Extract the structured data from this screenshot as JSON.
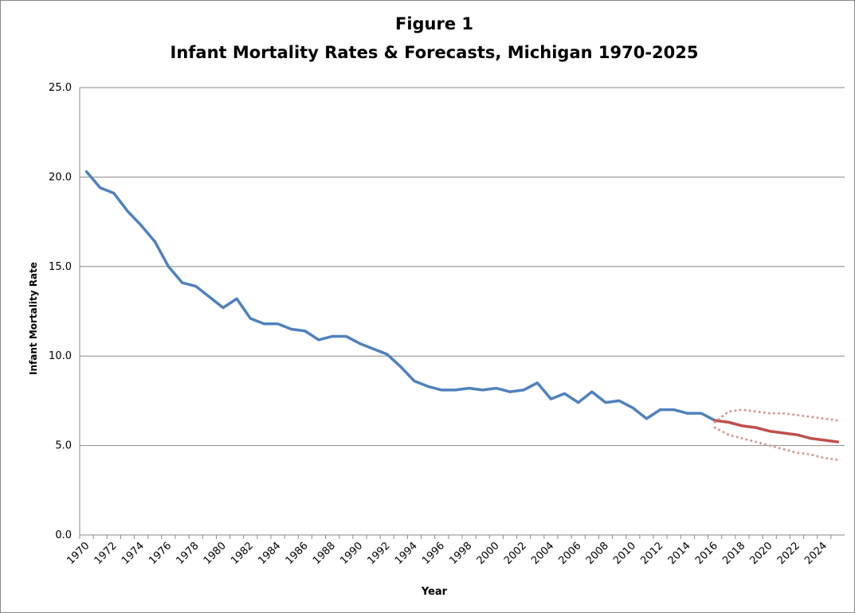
{
  "chart_data": {
    "type": "line",
    "title": "Figure 1",
    "subtitle": "Infant Mortality  Rates & Forecasts,  Michigan 1970-2025",
    "x_label": "Year",
    "y_label": "Infant Mortality Rate",
    "categories": [
      "1970",
      null,
      "1972",
      null,
      "1974",
      null,
      "1976",
      null,
      "1978",
      null,
      "1980",
      null,
      "1982",
      null,
      "1984",
      null,
      "1986",
      null,
      "1988",
      null,
      "1990",
      null,
      "1992",
      null,
      "1994",
      null,
      "1996",
      null,
      "1998",
      null,
      "2000",
      null,
      "2002",
      null,
      "2004",
      null,
      "2006",
      null,
      "2008",
      null,
      "2010",
      null,
      "2012",
      null,
      "2014",
      null,
      "2016",
      null,
      "2018",
      null,
      "2020",
      null,
      "2022",
      null,
      "2024",
      null
    ],
    "series": [
      {
        "color": "#4f81bd",
        "style": "solid",
        "values": [
          20.3,
          19.4,
          19.1,
          18.1,
          17.3,
          16.4,
          15.0,
          14.1,
          13.9,
          13.3,
          12.7,
          13.2,
          12.1,
          11.8,
          11.8,
          11.5,
          11.4,
          10.9,
          11.1,
          11.1,
          10.7,
          10.4,
          10.1,
          9.4,
          8.6,
          8.3,
          8.1,
          8.1,
          8.2,
          8.1,
          8.2,
          8.0,
          8.1,
          8.5,
          7.6,
          7.9,
          7.4,
          8.0,
          7.4,
          7.5,
          7.1,
          6.5,
          7.0,
          7.0,
          6.8,
          6.8,
          6.4,
          null,
          null,
          null,
          null,
          null,
          null,
          null,
          null,
          null
        ]
      },
      {
        "color": "#c0504d",
        "style": "solid",
        "values": [
          null,
          null,
          null,
          null,
          null,
          null,
          null,
          null,
          null,
          null,
          null,
          null,
          null,
          null,
          null,
          null,
          null,
          null,
          null,
          null,
          null,
          null,
          null,
          null,
          null,
          null,
          null,
          null,
          null,
          null,
          null,
          null,
          null,
          null,
          null,
          null,
          null,
          null,
          null,
          null,
          null,
          null,
          null,
          null,
          null,
          null,
          6.4,
          6.3,
          6.1,
          6.0,
          5.8,
          5.7,
          5.6,
          5.4,
          5.3,
          5.2
        ]
      },
      {
        "color": "#d99694",
        "style": "dotted",
        "values": [
          null,
          null,
          null,
          null,
          null,
          null,
          null,
          null,
          null,
          null,
          null,
          null,
          null,
          null,
          null,
          null,
          null,
          null,
          null,
          null,
          null,
          null,
          null,
          null,
          null,
          null,
          null,
          null,
          null,
          null,
          null,
          null,
          null,
          null,
          null,
          null,
          null,
          null,
          null,
          null,
          null,
          null,
          null,
          null,
          null,
          null,
          6.3,
          6.9,
          7.0,
          6.9,
          6.8,
          6.8,
          6.7,
          6.6,
          6.5,
          6.4
        ]
      },
      {
        "color": "#d99694",
        "style": "dotted",
        "values": [
          null,
          null,
          null,
          null,
          null,
          null,
          null,
          null,
          null,
          null,
          null,
          null,
          null,
          null,
          null,
          null,
          null,
          null,
          null,
          null,
          null,
          null,
          null,
          null,
          null,
          null,
          null,
          null,
          null,
          null,
          null,
          null,
          null,
          null,
          null,
          null,
          null,
          null,
          null,
          null,
          null,
          null,
          null,
          null,
          null,
          null,
          6.0,
          5.6,
          5.4,
          5.2,
          5.0,
          4.8,
          4.6,
          4.5,
          4.3,
          4.2
        ]
      }
    ],
    "ylim": [
      0,
      25
    ],
    "yticks": [
      {
        "value": 0,
        "label": "0.0"
      },
      {
        "value": 5,
        "label": "5.0"
      },
      {
        "value": 10,
        "label": "10.0"
      },
      {
        "value": 15,
        "label": "15.0"
      },
      {
        "value": 20,
        "label": "20.0"
      },
      {
        "value": 25,
        "label": "25.0"
      }
    ],
    "grid": true
  }
}
